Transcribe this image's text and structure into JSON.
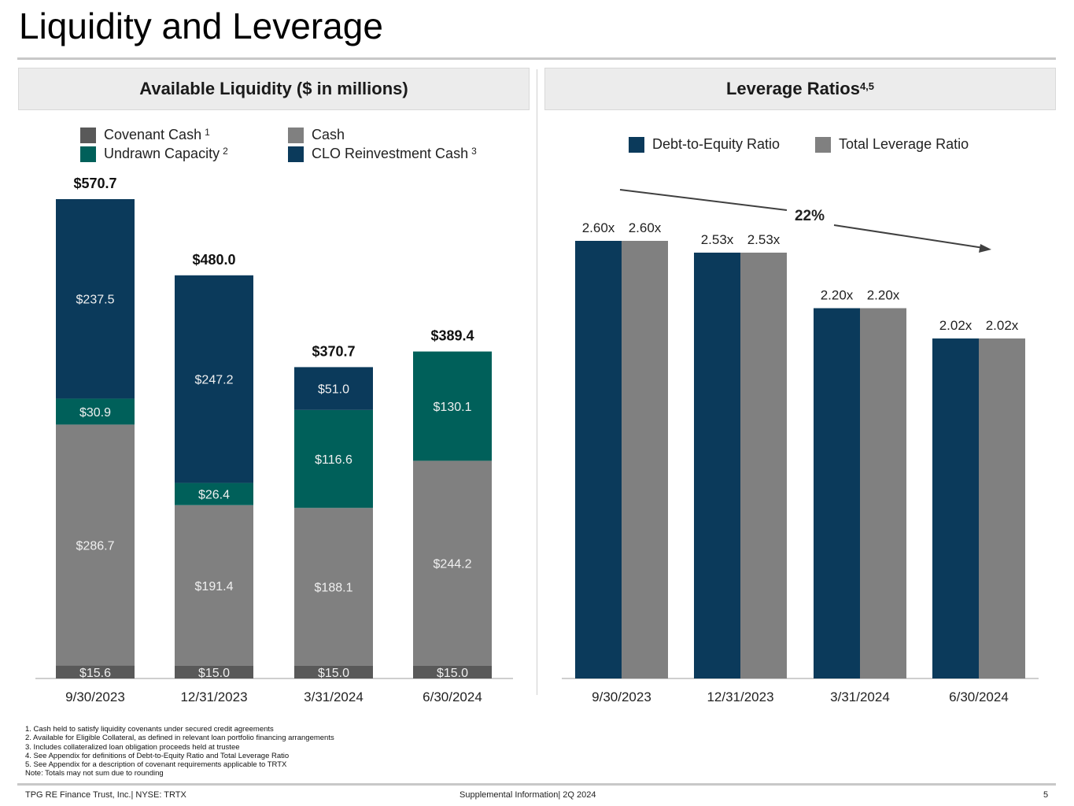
{
  "title": "Liquidity and Leverage",
  "left_header": {
    "label": "Available Liquidity ($ in millions)"
  },
  "right_header": {
    "label": "Leverage Ratios",
    "sup": "4,5"
  },
  "chart_data": [
    {
      "type": "bar",
      "stacked": true,
      "title": "Available Liquidity ($ in millions)",
      "categories": [
        "9/30/2023",
        "12/31/2023",
        "3/31/2024",
        "6/30/2024"
      ],
      "series": [
        {
          "name": "Covenant Cash",
          "sup": "1",
          "color": "#595959",
          "values": [
            15.6,
            15.0,
            15.0,
            15.0
          ],
          "labels": [
            "$15.6",
            "$15.0",
            "$15.0",
            "$15.0"
          ]
        },
        {
          "name": "Cash",
          "sup": "",
          "color": "#808080",
          "values": [
            286.7,
            191.4,
            188.1,
            244.2
          ],
          "labels": [
            "$286.7",
            "$191.4",
            "$188.1",
            "$244.2"
          ]
        },
        {
          "name": "Undrawn Capacity",
          "sup": "2",
          "color": "#00605A",
          "values": [
            30.9,
            26.4,
            116.6,
            130.1
          ],
          "labels": [
            "$30.9",
            "$26.4",
            "$116.6",
            "$130.1"
          ]
        },
        {
          "name": "CLO Reinvestment Cash",
          "sup": "3",
          "color": "#0B3A5B",
          "values": [
            237.5,
            247.2,
            51.0,
            0
          ],
          "labels": [
            "$237.5",
            "$247.2",
            "$51.0",
            ""
          ]
        }
      ],
      "totals": [
        "$570.7",
        "$480.0",
        "$370.7",
        "$389.4"
      ],
      "ylim": [
        0,
        570.7
      ]
    },
    {
      "type": "bar",
      "title": "Leverage Ratios",
      "categories": [
        "9/30/2023",
        "12/31/2023",
        "3/31/2024",
        "6/30/2024"
      ],
      "series": [
        {
          "name": "Debt-to-Equity Ratio",
          "color": "#0B3A5B",
          "values": [
            2.6,
            2.53,
            2.2,
            2.02
          ],
          "labels": [
            "2.60x",
            "2.53x",
            "2.20x",
            "2.02x"
          ]
        },
        {
          "name": "Total Leverage Ratio",
          "color": "#808080",
          "values": [
            2.6,
            2.53,
            2.2,
            2.02
          ],
          "labels": [
            "2.60x",
            "2.53x",
            "2.20x",
            "2.02x"
          ]
        }
      ],
      "annotation": "22%",
      "ylim": [
        0,
        2.6
      ]
    }
  ],
  "footnotes": [
    "1. Cash held to satisfy liquidity covenants under secured credit agreements",
    "2. Available for Eligible Collateral, as defined in relevant loan portfolio financing arrangements",
    "3. Includes collateralized loan obligation proceeds held at trustee",
    "4. See Appendix for definitions of Debt-to-Equity Ratio and Total Leverage Ratio",
    "5. See Appendix for a description of covenant requirements applicable to TRTX",
    "Note: Totals may not sum due to rounding"
  ],
  "footer": {
    "left": "TPG RE Finance Trust, Inc.| NYSE: TRTX",
    "center": "Supplemental Information| 2Q 2024",
    "page": "5"
  }
}
